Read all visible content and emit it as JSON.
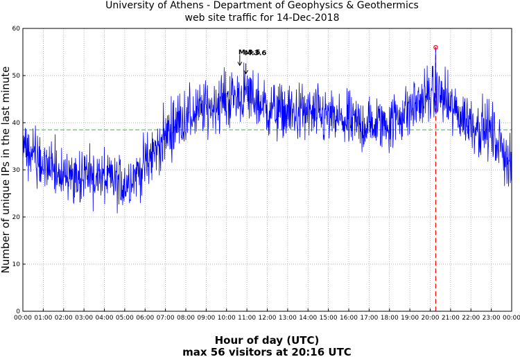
{
  "chart_data": {
    "type": "line",
    "title": "University of Athens - Department of Geophysics & Geothermics",
    "subtitle": "web site traffic for 14-Dec-2018",
    "xlabel": "Hour of day (UTC)",
    "ylabel": "Number of unique IPs in the last minute",
    "footer": "max 56 visitors at 20:16 UTC",
    "xlim": [
      0,
      24
    ],
    "ylim": [
      0,
      60
    ],
    "x_tick_labels": [
      "00:00",
      "01:00",
      "02:00",
      "03:00",
      "04:00",
      "05:00",
      "06:00",
      "07:00",
      "08:00",
      "09:00",
      "10:00",
      "11:00",
      "12:00",
      "13:00",
      "14:00",
      "15:00",
      "16:00",
      "17:00",
      "18:00",
      "19:00",
      "20:00",
      "21:00",
      "22:00",
      "23:00",
      "00:00"
    ],
    "y_tick_labels": [
      "0",
      "10",
      "20",
      "30",
      "40",
      "50",
      "60"
    ],
    "grid": true,
    "line_color": "#0000ff",
    "mean_line": {
      "value": 38.5,
      "color": "#22cc22"
    },
    "max_point": {
      "hour": 20.27,
      "value": 56,
      "color": "#ff0000"
    },
    "trend_keypoints": {
      "hours": [
        0,
        0.5,
        1,
        2,
        3,
        4,
        5,
        6,
        6.5,
        7,
        7.5,
        8,
        9,
        10,
        11,
        12,
        13,
        14,
        15,
        16,
        17,
        18,
        19,
        19.7,
        20,
        20.5,
        21,
        22,
        23,
        23.6,
        24
      ],
      "values": [
        35,
        33,
        31,
        29,
        29,
        28,
        27,
        31,
        34,
        37,
        40,
        41,
        43,
        45,
        46,
        43,
        42,
        42,
        41,
        40,
        39.5,
        40,
        43,
        45,
        46,
        46,
        43,
        40,
        38,
        34,
        31
      ]
    },
    "annotations": [
      {
        "label": "M:3.5",
        "hour": 10.65
      },
      {
        "label": "M:3.6",
        "hour": 10.95
      }
    ]
  }
}
